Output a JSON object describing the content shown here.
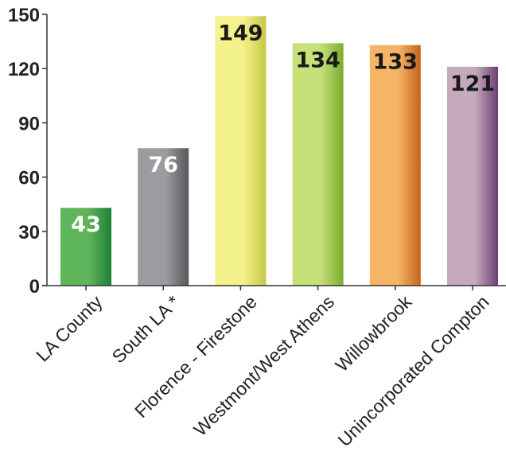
{
  "chart_data": {
    "type": "bar",
    "categories": [
      "LA County",
      "South LA *",
      "Florence - Firestone",
      "Westmont/West Athens",
      "Willowbrook",
      "Unincorporated Compton"
    ],
    "values": [
      43,
      76,
      149,
      134,
      133,
      121
    ],
    "title": "",
    "xlabel": "",
    "ylabel": "",
    "ylim": [
      0,
      150
    ],
    "yticks": [
      0,
      30,
      60,
      90,
      120,
      150
    ],
    "grid": false,
    "legend": "none",
    "bar_colors": [
      [
        "#5fb55a",
        "#1f7f36"
      ],
      [
        "#9a9c9f",
        "#555759"
      ],
      [
        "#f4f28a",
        "#c5c748"
      ],
      [
        "#c6e07a",
        "#7cab2c"
      ],
      [
        "#f6b467",
        "#c4651b"
      ],
      [
        "#c5a9bd",
        "#6d3f72"
      ]
    ],
    "value_label_colors": [
      "#ffffff",
      "#ffffff",
      "#1a1a1a",
      "#1a1a1a",
      "#1a1a1a",
      "#1a1a1a"
    ]
  }
}
